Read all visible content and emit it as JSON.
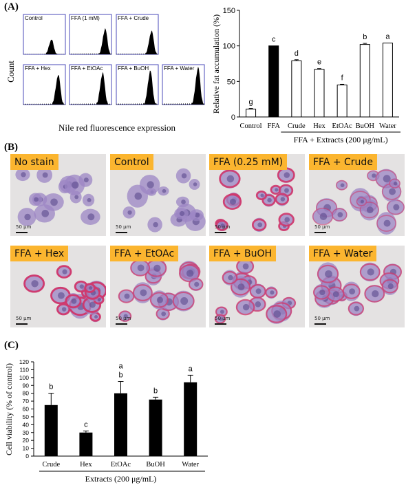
{
  "panel_labels": {
    "a": "(A)",
    "b": "(B)",
    "c": "(C)"
  },
  "flow": {
    "ylabel": "Count",
    "xlabel": "Nile red fluorescence expression",
    "panels": [
      "Control",
      "FFA (1 mM)",
      "FFA + Crude",
      "FFA + Hex",
      "FFA + EtOAc",
      "FFA + BuOH",
      "FFA + Water"
    ]
  },
  "chart_data": [
    {
      "type": "bar",
      "categories": [
        "Control",
        "FFA",
        "Crude",
        "Hex",
        "EtOAc",
        "BuOH",
        "Water"
      ],
      "values": [
        11,
        100,
        79,
        67,
        45,
        102,
        104
      ],
      "errors": [
        1,
        0,
        1.5,
        1,
        1,
        1.5,
        0
      ],
      "significance": [
        "g",
        "c",
        "d",
        "e",
        "f",
        "b",
        "a"
      ],
      "fill": [
        "white",
        "black",
        "white",
        "white",
        "white",
        "white",
        "white"
      ],
      "ylabel": "Relative fat accumulation (%)",
      "group_label": "FFA + Extracts (200 μg/mL)",
      "ylim": [
        0,
        150
      ],
      "yticks": [
        0,
        50,
        100,
        150
      ]
    },
    {
      "type": "bar",
      "categories": [
        "Crude",
        "Hex",
        "EtOAc",
        "BuOH",
        "Water"
      ],
      "values": [
        65,
        30,
        80,
        72,
        94
      ],
      "errors": [
        15,
        2,
        15,
        3,
        9
      ],
      "significance": [
        [
          "b"
        ],
        [
          "c"
        ],
        [
          "a",
          "b"
        ],
        [
          "b"
        ],
        [
          "a"
        ]
      ],
      "ylabel": "Cell viability (% of control)",
      "xlabel": "Extracts (200 μg/mL)",
      "ylim": [
        0,
        120
      ],
      "yticks": [
        0,
        10,
        20,
        30,
        40,
        50,
        60,
        70,
        80,
        90,
        100,
        110,
        120
      ]
    }
  ],
  "micrographs": {
    "scale_label": "50 μm",
    "panels": [
      "No stain",
      "Control",
      "FFA (0.25 mM)",
      "FFA + Crude",
      "FFA + Hex",
      "FFA + EtOAc",
      "FFA + BuOH",
      "FFA + Water"
    ]
  },
  "colors": {
    "bar_black": "#000000",
    "label_bg": "#fbb52f",
    "flow_frame": "#4a4ab8",
    "cell_purple": "#9c86c4",
    "lipid_red": "#d0366a"
  }
}
